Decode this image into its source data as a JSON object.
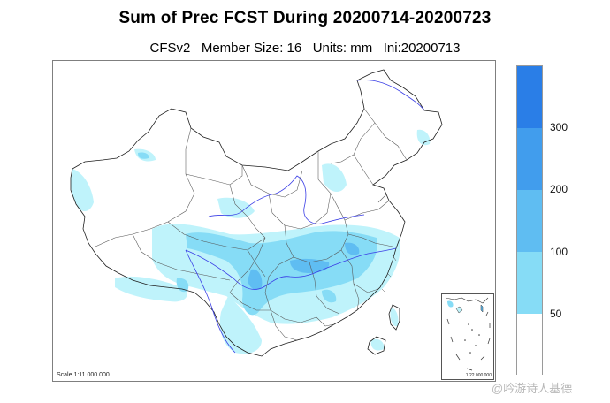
{
  "title": "Sum of Prec FCST During 20200714-20200723",
  "subtitle": "CFSv2   Member Size: 16   Units: mm   Ini:20200713",
  "map": {
    "region": "China",
    "scale_text": "Scale 1:11 000 000",
    "inset_scale_text": "1:22 000 000"
  },
  "legend": {
    "ticks": [
      "50",
      "100",
      "200",
      "300"
    ],
    "colors": {
      "lt50": "#ffffff",
      "50_100": "#bff3fb",
      "100_200": "#86dcf6",
      "200_300": "#5fbdf2",
      "300_400": "#419ded",
      "gt400": "#2a7ee7"
    }
  },
  "watermark": "@吟游诗人基德"
}
